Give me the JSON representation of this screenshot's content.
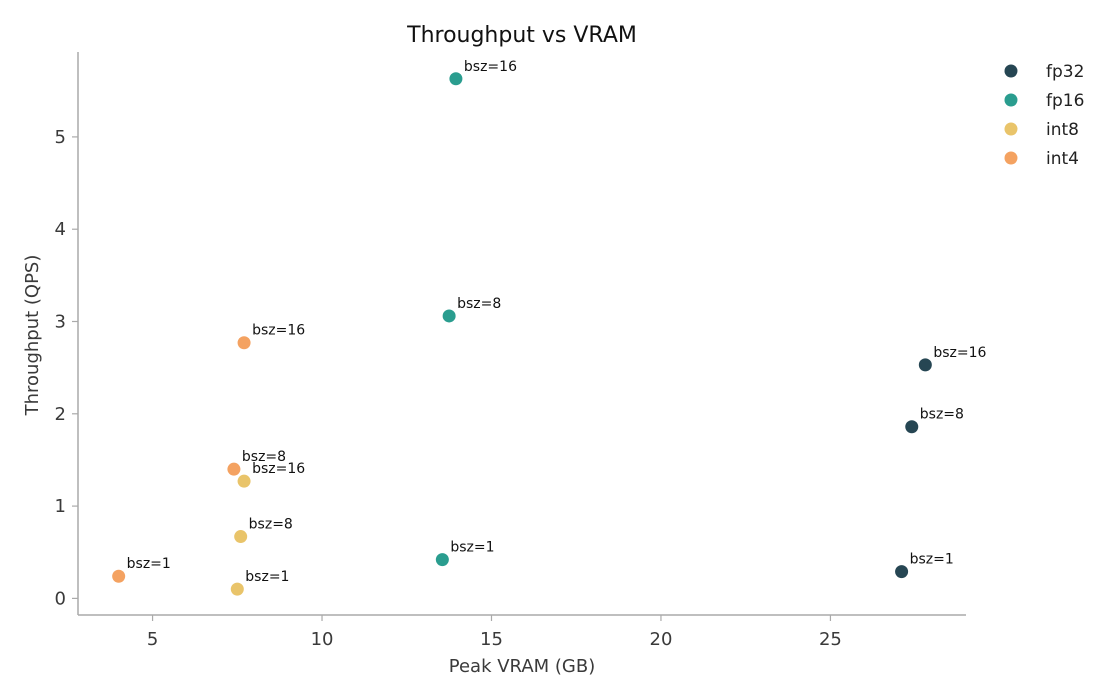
{
  "chart_data": {
    "type": "scatter",
    "title": "Throughput vs VRAM",
    "xlabel": "Peak VRAM (GB)",
    "ylabel": "Throughput (QPS)",
    "xlim": [
      2.8,
      29.0
    ],
    "ylim": [
      -0.18,
      5.92
    ],
    "xticks": [
      5,
      10,
      15,
      20,
      25
    ],
    "yticks": [
      0,
      1,
      2,
      3,
      4,
      5
    ],
    "grid": false,
    "legend_position": "top-right (outside plot)",
    "series": [
      {
        "name": "fp32",
        "color": "#264653",
        "points": [
          {
            "x": 27.1,
            "y": 0.29,
            "label": "bsz=1"
          },
          {
            "x": 27.4,
            "y": 1.86,
            "label": "bsz=8"
          },
          {
            "x": 27.8,
            "y": 2.53,
            "label": "bsz=16"
          }
        ]
      },
      {
        "name": "fp16",
        "color": "#2a9d8f",
        "points": [
          {
            "x": 13.55,
            "y": 0.42,
            "label": "bsz=1"
          },
          {
            "x": 13.75,
            "y": 3.06,
            "label": "bsz=8"
          },
          {
            "x": 13.95,
            "y": 5.63,
            "label": "bsz=16"
          }
        ]
      },
      {
        "name": "int8",
        "color": "#e9c46a",
        "points": [
          {
            "x": 7.5,
            "y": 0.1,
            "label": "bsz=1"
          },
          {
            "x": 7.6,
            "y": 0.67,
            "label": "bsz=8"
          },
          {
            "x": 7.7,
            "y": 1.27,
            "label": "bsz=16"
          }
        ]
      },
      {
        "name": "int4",
        "color": "#f4a261",
        "points": [
          {
            "x": 4.0,
            "y": 0.24,
            "label": "bsz=1"
          },
          {
            "x": 7.4,
            "y": 1.4,
            "label": "bsz=8"
          },
          {
            "x": 7.7,
            "y": 2.77,
            "label": "bsz=16"
          }
        ]
      }
    ]
  }
}
